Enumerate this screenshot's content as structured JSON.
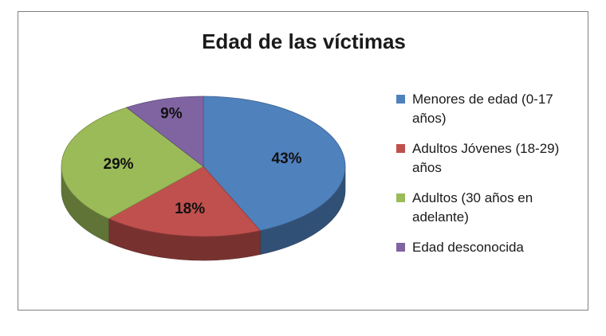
{
  "chart_data": {
    "type": "pie",
    "title": "Edad de las víctimas",
    "categories": [
      "Menores de edad (0-17 años)",
      "Adultos Jóvenes (18-29) años",
      "Adultos (30 años en adelante)",
      "Edad desconocida"
    ],
    "values": [
      43,
      18,
      29,
      9
    ],
    "labels": [
      "43%",
      "18%",
      "29%",
      "9%"
    ],
    "colors": [
      "#4f81bd",
      "#c0504d",
      "#9bbb59",
      "#8064a2"
    ],
    "legend_position": "right",
    "style": "3d"
  }
}
